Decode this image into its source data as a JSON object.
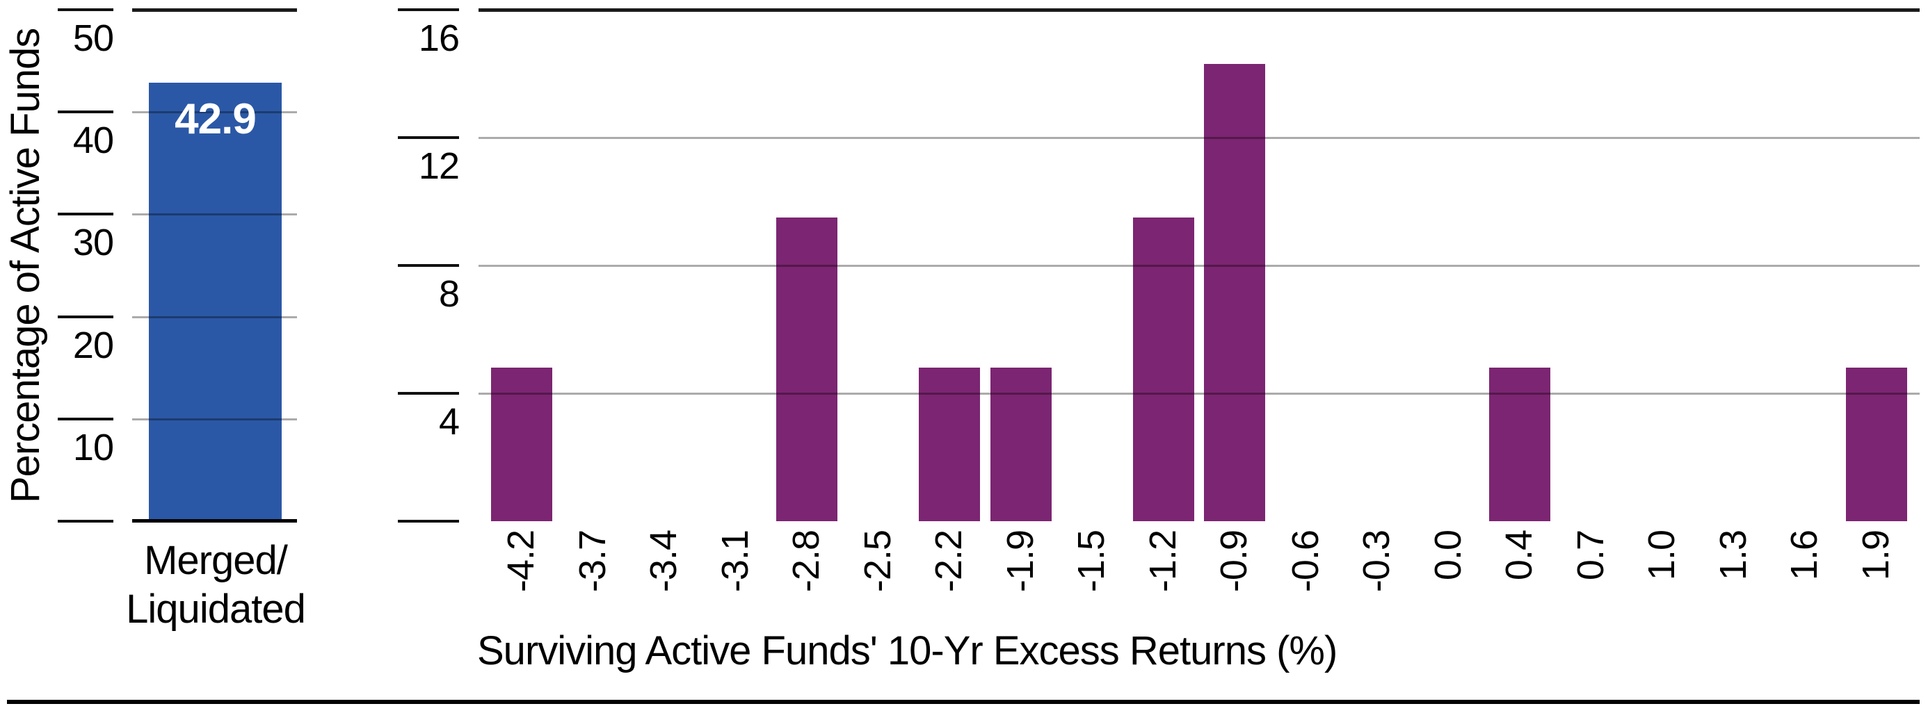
{
  "figure": {
    "colors": {
      "blue": "#2B58A6",
      "purple": "#7C2572",
      "gridline": "rgba(0,0,0,0.33)",
      "axis_line": "#1a1a1a"
    }
  },
  "chart_data": [
    {
      "type": "bar",
      "title": "",
      "categories": [
        "Merged/\nLiquidated"
      ],
      "values": [
        42.9
      ],
      "value_labels": [
        "42.9"
      ],
      "xlabel": "",
      "ylabel": "Percentage of Active Funds",
      "ylim": [
        0,
        50
      ],
      "yticks": [
        10,
        20,
        30,
        40,
        50
      ],
      "grid": "horizontal",
      "legend": "none",
      "bar_color": "#2B58A6"
    },
    {
      "type": "bar",
      "title": "",
      "categories": [
        "-4.2",
        "-3.7",
        "-3.4",
        "-3.1",
        "-2.8",
        "-2.5",
        "-2.2",
        "-1.9",
        "-1.5",
        "-1.2",
        "-0.9",
        "-0.6",
        "-0.3",
        "0.0",
        "0.4",
        "0.7",
        "1.0",
        "1.3",
        "1.6",
        "1.9"
      ],
      "values": [
        4.8,
        0,
        0,
        0,
        9.5,
        0,
        4.8,
        4.8,
        0,
        9.5,
        14.3,
        0,
        0,
        0,
        4.8,
        0,
        0,
        0,
        0,
        4.8
      ],
      "xlabel": "Surviving Active Funds' 10-Yr Excess Returns (%)",
      "ylabel": "",
      "ylim": [
        0,
        16
      ],
      "yticks": [
        4,
        8,
        12,
        16
      ],
      "grid": "horizontal",
      "legend": "none",
      "bar_color": "#7C2572"
    }
  ]
}
